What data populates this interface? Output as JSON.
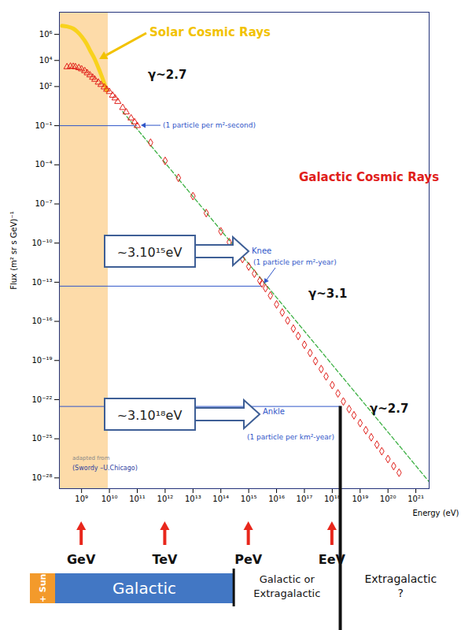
{
  "chart_data": {
    "type": "scatter",
    "log": true,
    "grid": false,
    "x_label": "Energy (eV)",
    "y_label": "Flux (m² sr s GeV)⁻¹",
    "xlim": [
      160000000.0,
      3e+21
    ],
    "ylim": [
      1.5e-29,
      50000000.0
    ],
    "xticks": [
      {
        "value": 1000000000.0,
        "label": "10⁹"
      },
      {
        "value": 10000000000.0,
        "label": "10¹⁰"
      },
      {
        "value": 100000000000.0,
        "label": "10¹¹"
      },
      {
        "value": 1000000000000.0,
        "label": "10¹²"
      },
      {
        "value": 10000000000000.0,
        "label": "10¹³"
      },
      {
        "value": 100000000000000.0,
        "label": "10¹⁴"
      },
      {
        "value": 1000000000000000.0,
        "label": "10¹⁵"
      },
      {
        "value": 1e+16,
        "label": "10¹⁶"
      },
      {
        "value": 1e+17,
        "label": "10¹⁷"
      },
      {
        "value": 1e+18,
        "label": "10¹⁸"
      },
      {
        "value": 1e+19,
        "label": "10¹⁹"
      },
      {
        "value": 1e+20,
        "label": "10²⁰"
      },
      {
        "value": 1e+21,
        "label": "10²¹"
      }
    ],
    "yticks": [
      {
        "value": 1000000.0,
        "label": "10⁶"
      },
      {
        "value": 10000.0,
        "label": "10⁴"
      },
      {
        "value": 100.0,
        "label": "10²"
      },
      {
        "value": 0.1,
        "label": "10⁻¹"
      },
      {
        "value": 0.0001,
        "label": "10⁻⁴"
      },
      {
        "value": 1e-07,
        "label": "10⁻⁷"
      },
      {
        "value": 1e-10,
        "label": "10⁻¹⁰"
      },
      {
        "value": 1e-13,
        "label": "10⁻¹³"
      },
      {
        "value": 1e-16,
        "label": "10⁻¹⁶"
      },
      {
        "value": 1e-19,
        "label": "10⁻¹⁹"
      },
      {
        "value": 1e-22,
        "label": "10⁻²²"
      },
      {
        "value": 1e-25,
        "label": "10⁻²⁵"
      },
      {
        "value": 1e-28,
        "label": "10⁻²⁸"
      }
    ],
    "shaded_region": {
      "x": [
        160000000.0,
        9000000000.0
      ],
      "color": "#fdd59a"
    },
    "series": [
      {
        "type": "line",
        "color": "#f8d21c",
        "line_style": "thick",
        "x": [
          200000000.0,
          300000000.0,
          500000000.0,
          700000000.0,
          1000000000.0,
          1500000000.0,
          2000000000.0,
          3000000000.0,
          4500000000.0,
          6000000000.0,
          8000000000.0
        ],
        "values": [
          4500000.0,
          4000000.0,
          2800000.0,
          1600000.0,
          700000.0,
          200000.0,
          60000.0,
          12000.0,
          1500.0,
          300.0,
          50.0
        ]
      },
      {
        "type": "line",
        "color": "#3cb043",
        "line_style": "dashed",
        "x": [
          30000000000.0,
          3e+21
        ],
        "values": [
          1.2,
          5e-29
        ]
      },
      {
        "type": "scatter",
        "color": "#e0201b",
        "marker": "triangle",
        "x": [
          300000000.0,
          400000000.0,
          500000000.0,
          600000000.0,
          800000000.0,
          1000000000.0,
          1300000000.0,
          1600000000.0,
          2000000000.0,
          2500000000.0,
          3000000000.0,
          4000000000.0,
          5000000000.0,
          6500000000.0,
          8000000000.0,
          10000000000.0,
          13000000000.0,
          16000000000.0,
          20000000000.0,
          30000000000.0,
          40000000000.0,
          60000000000.0,
          80000000000.0,
          100000000000.0
        ],
        "values": [
          3200.0,
          3500.0,
          3400.0,
          3200.0,
          2700.0,
          2200.0,
          1600.0,
          1100.0,
          760.0,
          500.0,
          350.0,
          210.0,
          140.0,
          90.0,
          60.0,
          40.0,
          21.0,
          13.0,
          7,
          2.4,
          1.1,
          0.38,
          0.19,
          0.1
        ]
      },
      {
        "type": "scatter",
        "color": "#e0201b",
        "marker": "diamond",
        "x": [
          300000000000.0,
          1000000000000.0,
          3000000000000.0,
          10000000000000.0,
          30000000000000.0,
          100000000000000.0,
          200000000000000.0,
          400000000000000.0,
          600000000000000.0,
          1000000000000000.0,
          1600000000000000.0,
          2500000000000000.0,
          3000000000000000.0,
          4000000000000000.0,
          6000000000000000.0,
          1e+16,
          1.6e+16,
          2.5e+16,
          4e+16,
          6e+16,
          1e+17,
          1.6e+17,
          2.5e+17,
          4e+17,
          6e+17,
          1e+18,
          1.6e+18,
          2.5e+18,
          4e+18,
          6e+18,
          1e+19,
          1.6e+19,
          2.5e+19,
          4e+19,
          6e+19,
          1e+20,
          1.6e+20,
          2.5e+20
        ],
        "values": [
          0.005,
          0.0002,
          1e-05,
          4e-07,
          2e-08,
          8e-10,
          1.2e-10,
          1.9e-11,
          6e-12,
          1.6e-12,
          4.5e-13,
          1.3e-13,
          8e-14,
          3.5e-14,
          9.5e-15,
          2e-15,
          4.8e-16,
          1.15e-16,
          2.8e-17,
          7.6e-18,
          1.6e-18,
          3.8e-19,
          9e-20,
          2.2e-20,
          6e-21,
          1.3e-21,
          3e-22,
          7.2e-23,
          1.9e-23,
          6.3e-24,
          1.6e-24,
          4.5e-25,
          1.3e-25,
          3.5e-26,
          1.1e-26,
          2.8e-27,
          8e-28,
          2.5e-28
        ]
      }
    ],
    "reference_lines": [
      {
        "flux": 0.1,
        "x_end": 100000000000.0,
        "label": "(1 particle per m²-second)"
      },
      {
        "flux": 5e-14,
        "x_end": 3000000000000000.0,
        "name": "Knee",
        "label": "(1 particle per m²-year)",
        "energy_label": "~3.10¹⁵eV"
      },
      {
        "flux": 3e-23,
        "x_end": 2e+18,
        "name": "Ankle",
        "label": "(1 particle per km²-year)",
        "energy_label": "~3.10¹⁸eV"
      }
    ],
    "annotations": [
      {
        "text": "Solar Cosmic Rays",
        "color": "#f2c200"
      },
      {
        "text": "γ~2.7",
        "color": "#111111"
      },
      {
        "text": "Galactic Cosmic Rays",
        "color": "#e0201b"
      },
      {
        "text": "γ~3.1",
        "color": "#111111"
      },
      {
        "text": "γ~2.7",
        "color": "#111111"
      },
      {
        "text": "adapted from",
        "color": "#888888"
      },
      {
        "text": "(Swordy –U.Chicago)",
        "color": "#2f3f9f"
      }
    ],
    "energy_units": [
      {
        "label": "GeV",
        "value": 1000000000.0
      },
      {
        "label": "TeV",
        "value": 1000000000000.0
      },
      {
        "label": "PeV",
        "value": 1000000000000000.0
      },
      {
        "label": "EeV",
        "value": 1e+18
      }
    ],
    "regions": [
      {
        "label": "+ Sun",
        "color": "#f39a2b"
      },
      {
        "label": "Galactic",
        "color": "#4277c4",
        "end": 300000000000000.0
      },
      {
        "label": "Galactic or Extragalactic",
        "end": 2e+18
      },
      {
        "label": "Extragalactic ?"
      }
    ]
  }
}
